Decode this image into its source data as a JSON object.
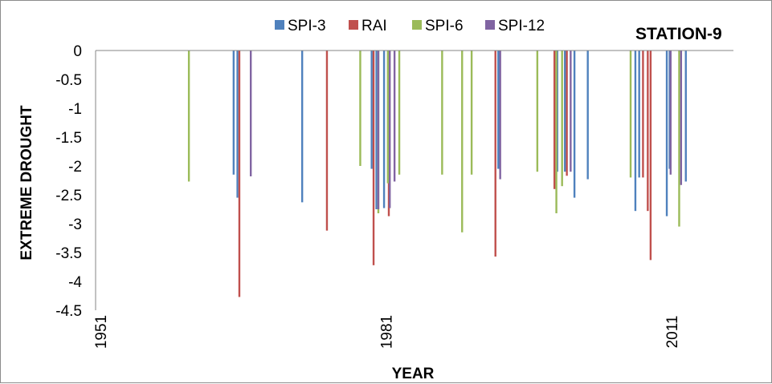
{
  "chart_data": {
    "type": "bar",
    "title": "STATION-9",
    "xlabel": "YEAR",
    "ylabel": "EXTREME DROUGHT",
    "ylim": [
      -4.5,
      0
    ],
    "yticks": [
      0,
      -0.5,
      -1,
      -1.5,
      -2,
      -2.5,
      -3,
      -3.5,
      -4,
      -4.5
    ],
    "ytick_labels": [
      "0",
      "-0.5",
      "-1",
      "-1.5",
      "-2",
      "-2.5",
      "-3",
      "-3.5",
      "-4",
      "-4.5"
    ],
    "xlim": [
      1951,
      2018
    ],
    "xticks": [
      1951,
      1981,
      2011
    ],
    "xtick_labels": [
      "1951",
      "1981",
      "2011"
    ],
    "grid": false,
    "legend_position": "top",
    "series": [
      {
        "name": "SPI-3",
        "color": "#4f81bd",
        "points": [
          [
            1965.5,
            -2.15
          ],
          [
            1965.9,
            -2.55
          ],
          [
            1972.7,
            -2.63
          ],
          [
            1980.0,
            -2.05
          ],
          [
            1980.5,
            -2.75
          ],
          [
            1981.3,
            -2.73
          ],
          [
            1993.3,
            -2.05
          ],
          [
            1999.5,
            -2.1
          ],
          [
            2000.3,
            -2.1
          ],
          [
            2001.3,
            -2.55
          ],
          [
            2002.7,
            -2.23
          ],
          [
            2007.7,
            -2.78
          ],
          [
            2008.1,
            -2.2
          ],
          [
            2011.0,
            -2.87
          ],
          [
            2011.3,
            -2.05
          ],
          [
            2013.0,
            -2.27
          ]
        ]
      },
      {
        "name": "RAI",
        "color": "#c0504d",
        "points": [
          [
            1966.1,
            -4.27
          ],
          [
            1975.3,
            -3.12
          ],
          [
            1980.2,
            -3.72
          ],
          [
            1981.8,
            -2.87
          ],
          [
            1993.0,
            -3.57
          ],
          [
            1999.2,
            -2.4
          ],
          [
            2000.5,
            -2.17
          ],
          [
            2008.5,
            -2.2
          ],
          [
            2009.0,
            -2.78
          ],
          [
            2009.3,
            -3.63
          ]
        ]
      },
      {
        "name": "SPI-6",
        "color": "#9bbb59",
        "points": [
          [
            1960.8,
            -2.27
          ],
          [
            1978.8,
            -2.0
          ],
          [
            1980.7,
            -2.82
          ],
          [
            1981.7,
            -2.3
          ],
          [
            1982.9,
            -2.15
          ],
          [
            1987.4,
            -2.15
          ],
          [
            1989.5,
            -3.15
          ],
          [
            1990.5,
            -2.15
          ],
          [
            1997.4,
            -2.1
          ],
          [
            1999.4,
            -2.82
          ],
          [
            2000.0,
            -2.35
          ],
          [
            2007.2,
            -2.2
          ],
          [
            2012.3,
            -3.05
          ]
        ]
      },
      {
        "name": "SPI-12",
        "color": "#8064a2",
        "points": [
          [
            1967.3,
            -2.18
          ],
          [
            1980.7,
            -2.75
          ],
          [
            1981.9,
            -2.73
          ],
          [
            1982.4,
            -2.27
          ],
          [
            1993.5,
            -2.23
          ],
          [
            2000.9,
            -2.1
          ],
          [
            2011.4,
            -2.15
          ],
          [
            2012.5,
            -2.33
          ]
        ]
      }
    ]
  }
}
